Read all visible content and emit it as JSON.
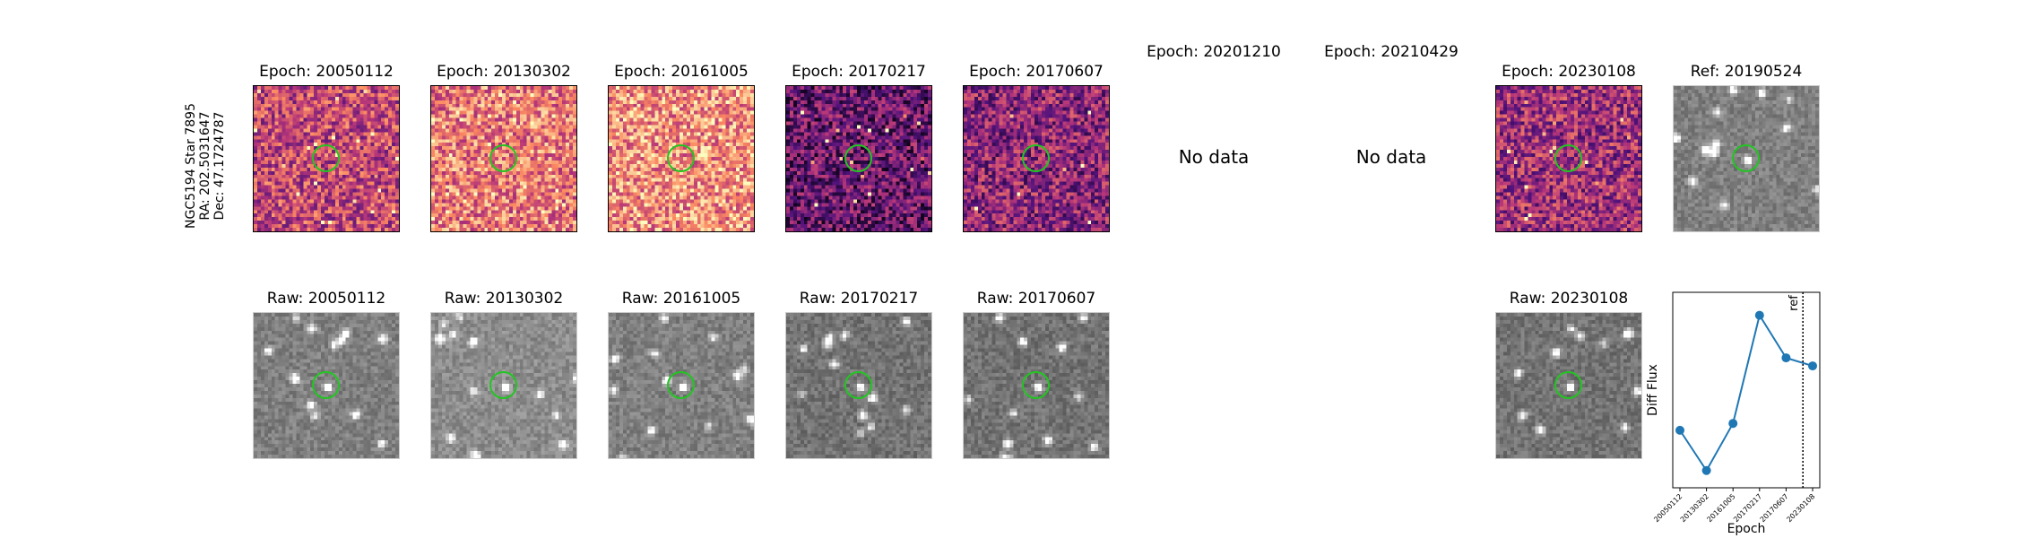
{
  "target": {
    "name": "NGC5194 Star 7895",
    "ra": "RA: 202.5031647",
    "dec": "Dec: 47.1724787"
  },
  "diff_titles": [
    "Epoch: 20050112",
    "Epoch: 20130302",
    "Epoch: 20161005",
    "Epoch: 20170217",
    "Epoch: 20170607",
    "Epoch: 20201210",
    "Epoch: 20210429",
    "Epoch: 20230108",
    "Ref: 20190524"
  ],
  "no_data_label": "No data",
  "raw_titles": [
    "Raw: 20050112",
    "Raw: 20130302",
    "Raw: 20161005",
    "Raw: 20170217",
    "Raw: 20170607",
    "Raw: 20230108"
  ],
  "colors": {
    "circle": "#22c522",
    "line": "#1f77b4"
  },
  "chart_data": {
    "type": "line",
    "title": "",
    "xlabel": "Epoch",
    "ylabel": "Diff Flux",
    "x": [
      "20050112",
      "20130302",
      "20161005",
      "20170217",
      "20170607",
      "20230108"
    ],
    "y": [
      0.4,
      0.05,
      0.46,
      1.4,
      1.03,
      0.96
    ],
    "ylim": [
      -0.1,
      1.6
    ],
    "reference_line": {
      "label": "ref",
      "position": "between 20170607 and 20230108",
      "style": "dotted"
    },
    "grid": false,
    "legend": "none"
  }
}
